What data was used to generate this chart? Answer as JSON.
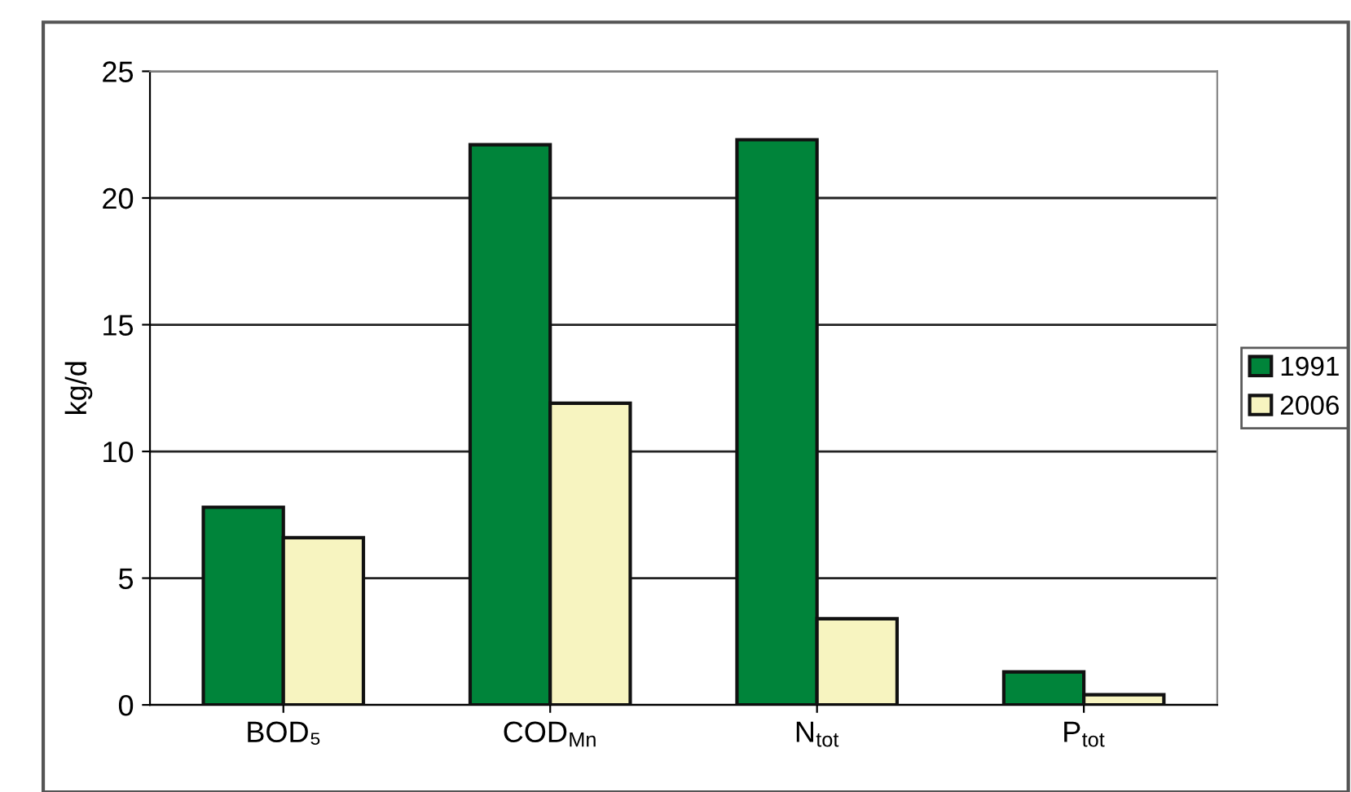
{
  "chart_data": {
    "type": "bar",
    "ylabel": "kg/d",
    "categories": [
      "BOD₅",
      "COD$_{Mn}$",
      "N$_{tot}$",
      "P$_{tot}$"
    ],
    "series": [
      {
        "name": "1991",
        "color": "#00843a",
        "values": [
          7.8,
          22.1,
          22.3,
          1.3
        ]
      },
      {
        "name": "2006",
        "color": "#f7f4c0",
        "values": [
          6.6,
          11.9,
          3.4,
          0.4
        ]
      }
    ],
    "ylim": [
      0,
      25
    ],
    "yticks": [
      0,
      5,
      10,
      15,
      20,
      25
    ],
    "grid": "y",
    "legend": "right"
  }
}
